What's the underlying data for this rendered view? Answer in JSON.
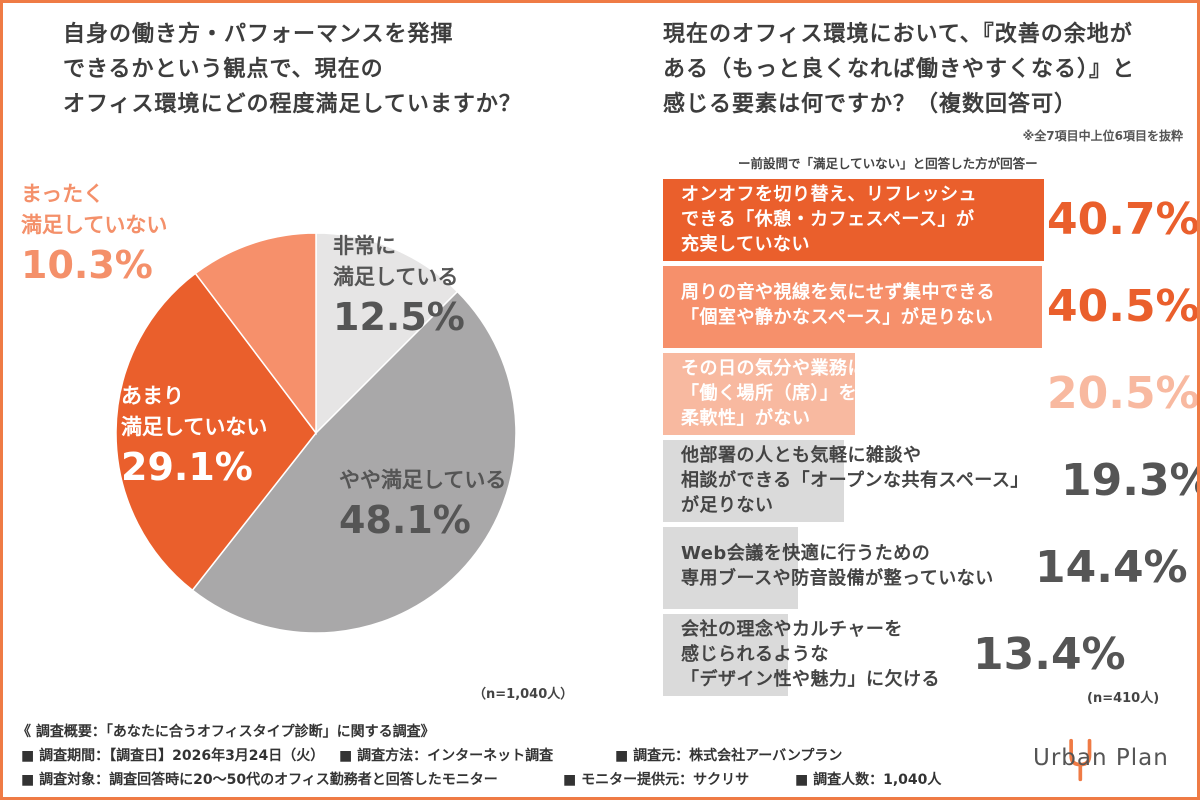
{
  "q1": {
    "title_lines": [
      "自身の働き方・パフォーマンスを発揮",
      "できるかという観点で、現在の",
      "オフィス環境にどの程度満足していますか？"
    ],
    "n": "（n=1,040人）"
  },
  "q2": {
    "title_lines": [
      "現在のオフィス環境において、『改善の余地が",
      "ある（もっと良くなれば働きやすくなる）』と",
      "感じる要素は何ですか？（複数回答可）"
    ],
    "note": "※全7項目中上位6項目を抜粋",
    "subnote": "ー前設問で「満足していない」と回答した方が回答ー",
    "n": "(n=410人)"
  },
  "chart_data": [
    {
      "type": "pie",
      "slices": [
        {
          "label": "非常に 満足している",
          "label_lines": [
            "非常に",
            "満足している"
          ],
          "value": 12.5,
          "display": "12.5%",
          "color": "#e6e5e5"
        },
        {
          "label": "やや満足している",
          "label_lines": [
            "やや満足している"
          ],
          "value": 48.1,
          "display": "48.1%",
          "color": "#a9a8a9"
        },
        {
          "label": "あまり 満足していない",
          "label_lines": [
            "あまり",
            "満足していない"
          ],
          "value": 29.1,
          "display": "29.1%",
          "color": "#ea5f2c"
        },
        {
          "label": "まったく 満足していない",
          "label_lines": [
            "まったく",
            "満足していない"
          ],
          "value": 10.3,
          "display": "10.3%",
          "color": "#f6906b"
        }
      ]
    },
    {
      "type": "bar",
      "orientation": "horizontal",
      "categories": [
        "オンオフを切り替え、リフレッシュできる「休憩・カフェスペース」が充実していない",
        "周りの音や視線を気にせず集中できる「個室や静かなスペース」が足りない",
        "その日の気分や業務に合わせて「働く場所（席）」を自由に選べる柔軟性」がない",
        "他部署の人とも気軽に雑談や相談ができる「オープンな共有スペース」が足りない",
        "Web会議を快適に行うための専用ブースや防音設備が整っていない",
        "会社の理念やカルチャーを感じられるような「デザイン性や魅力」に欠ける"
      ],
      "values": [
        40.7,
        40.5,
        20.5,
        19.3,
        14.4,
        13.4
      ],
      "bars": [
        {
          "lines": [
            "オンオフを切り替え、リフレッシュ",
            "できる「休憩・カフェスペース」が",
            "充実していない"
          ],
          "display": "40.7%",
          "color": "#ea5f2c",
          "text_color": "#ffffff",
          "value_color": "#ea5f2c"
        },
        {
          "lines": [
            "周りの音や視線を気にせず集中できる",
            "「個室や静かなスペース」が足りない"
          ],
          "display": "40.5%",
          "color": "#f6906b",
          "text_color": "#ffffff",
          "value_color": "#ea5f2c"
        },
        {
          "lines": [
            "その日の気分や業務に合わせて",
            "「働く場所（席）」を自由に選べる",
            "柔軟性」がない"
          ],
          "display": "20.5%",
          "color": "#f8b9a0",
          "text_color": "#ffffff",
          "value_color": "#f8b9a0"
        },
        {
          "lines": [
            "他部署の人とも気軽に雑談や",
            "相談ができる「オープンな共有スペース」",
            "が足りない"
          ],
          "display": "19.3%",
          "color": "#dadada",
          "text_color": "#444444",
          "value_color": "#555555"
        },
        {
          "lines": [
            "Web会議を快適に行うための",
            "専用ブースや防音設備が整っていない"
          ],
          "display": "14.4%",
          "color": "#dadada",
          "text_color": "#444444",
          "value_color": "#555555"
        },
        {
          "lines": [
            "会社の理念やカルチャーを",
            "感じられるような",
            "「デザイン性や魅力」に欠ける"
          ],
          "display": "13.4%",
          "color": "#dadada",
          "text_color": "#444444",
          "value_color": "#555555"
        }
      ]
    }
  ],
  "footer": {
    "title": "《 調査概要：「あなたに合うオフィスタイプ診断」に関する調査》",
    "period": "■ 調査期間：【調査日】2026年3月24日（火）",
    "method": "■ 調査方法：インターネット調査",
    "source": "■ 調査元：株式会社アーバンプラン",
    "target": "■ 調査対象：調査回答時に20〜50代のオフィス勤務者と回答したモニター",
    "provider": "■ モニター提供元：サクリサ",
    "count": "■ 調査人数：1,040人"
  },
  "logo": {
    "text": "Urban Plan",
    "accent": "#ef7b45"
  }
}
